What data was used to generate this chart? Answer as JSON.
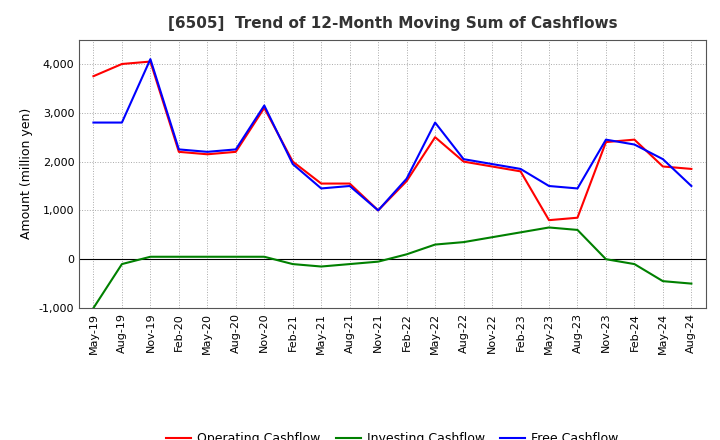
{
  "title": "[6505]  Trend of 12-Month Moving Sum of Cashflows",
  "ylabel": "Amount (million yen)",
  "xlabel": "",
  "xlabels": [
    "May-19",
    "Aug-19",
    "Nov-19",
    "Feb-20",
    "May-20",
    "Aug-20",
    "Nov-20",
    "Feb-21",
    "May-21",
    "Aug-21",
    "Nov-21",
    "Feb-22",
    "May-22",
    "Aug-22",
    "Nov-22",
    "Feb-23",
    "May-23",
    "Aug-23",
    "Nov-23",
    "Feb-24",
    "May-24",
    "Aug-24"
  ],
  "operating": [
    3750,
    4000,
    4050,
    2200,
    2150,
    2200,
    3100,
    2000,
    1550,
    1550,
    1000,
    1600,
    2500,
    2000,
    1900,
    1800,
    800,
    850,
    2400,
    2450,
    1900,
    1850
  ],
  "investing": [
    -1000,
    -100,
    50,
    50,
    50,
    50,
    50,
    -100,
    -150,
    -100,
    -50,
    100,
    300,
    350,
    450,
    550,
    650,
    600,
    0,
    -100,
    -450,
    -500
  ],
  "free": [
    2800,
    2800,
    4100,
    2250,
    2200,
    2250,
    3150,
    1950,
    1450,
    1500,
    1000,
    1650,
    2800,
    2050,
    1950,
    1850,
    1500,
    1450,
    2450,
    2350,
    2050,
    1500
  ],
  "ylim": [
    -1000,
    4500
  ],
  "yticks": [
    -1000,
    0,
    1000,
    2000,
    3000,
    4000
  ],
  "line_colors": {
    "operating": "#ff0000",
    "investing": "#008000",
    "free": "#0000ff"
  },
  "legend_labels": [
    "Operating Cashflow",
    "Investing Cashflow",
    "Free Cashflow"
  ],
  "bg_color": "#ffffff",
  "plot_bg_color": "#ffffff",
  "grid_color": "#aaaaaa",
  "title_fontsize": 11,
  "label_fontsize": 9,
  "tick_fontsize": 8,
  "line_width": 1.5
}
